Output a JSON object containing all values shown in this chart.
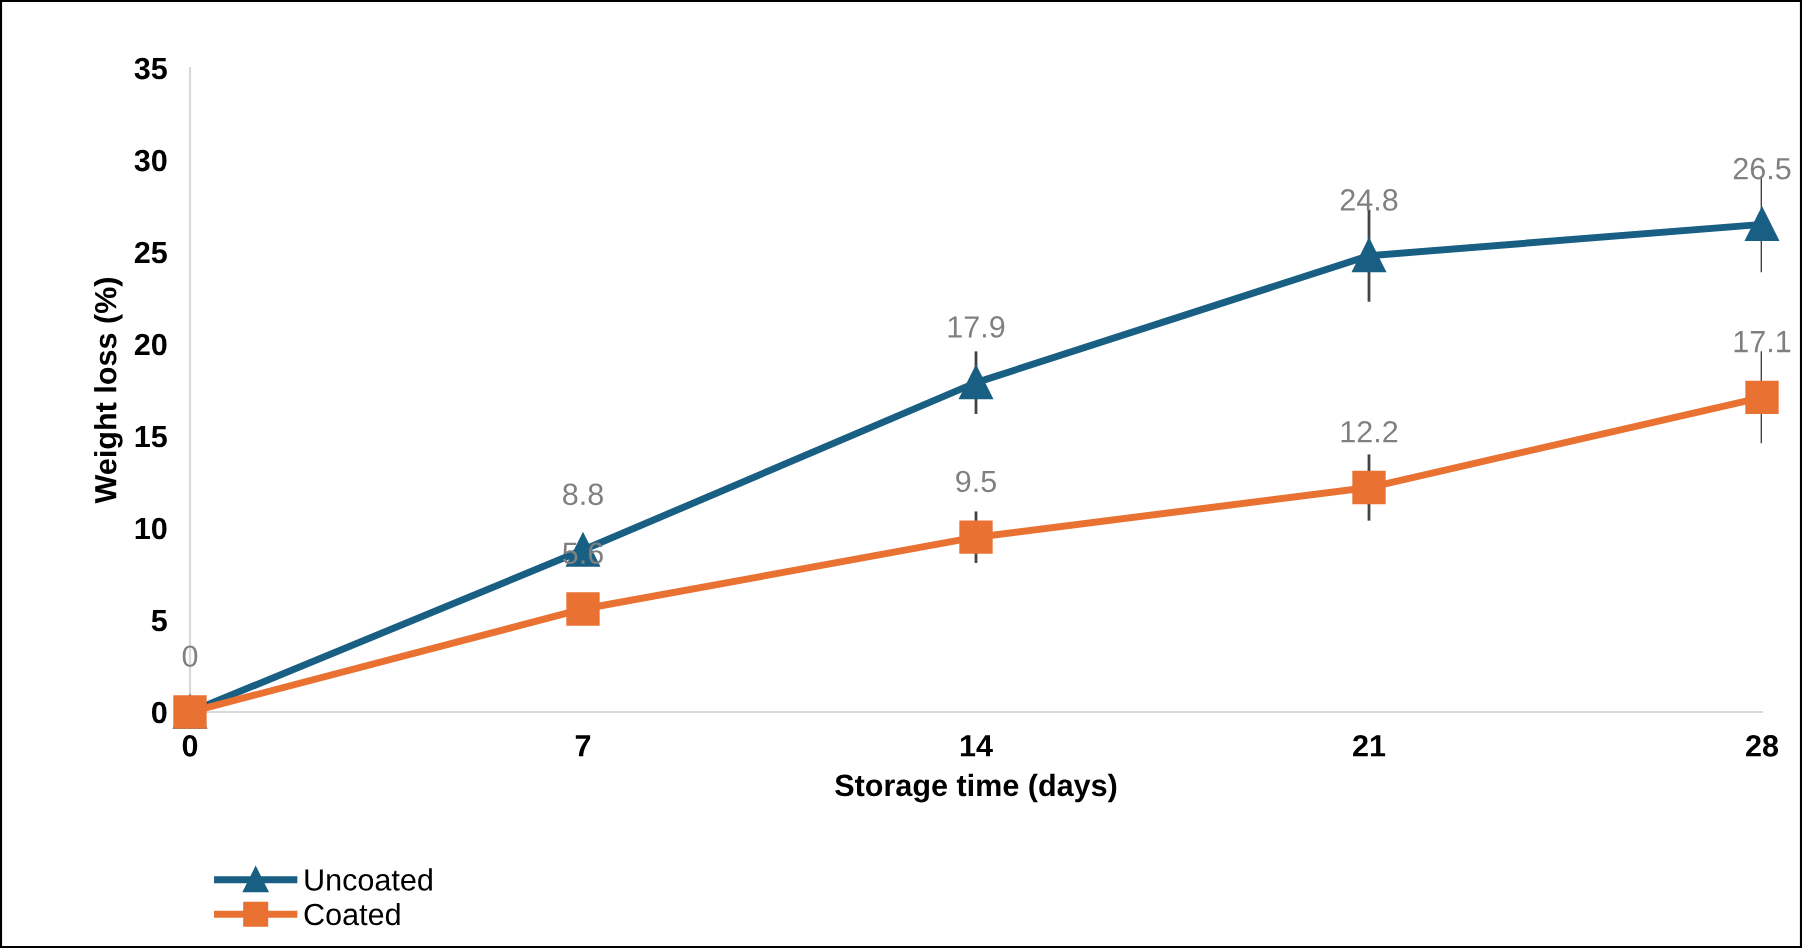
{
  "chart_data": {
    "type": "line",
    "xlabel": "Storage time (days)",
    "ylabel": "Weight loss (%)",
    "x": [
      0,
      7,
      14,
      21,
      28
    ],
    "xlim": [
      0,
      28
    ],
    "xticks": [
      0,
      7,
      14,
      21,
      28
    ],
    "ylim": [
      0,
      35
    ],
    "yticks": [
      0,
      5,
      10,
      15,
      20,
      25,
      30,
      35
    ],
    "series": [
      {
        "name": "Uncoated",
        "color": "#185f83",
        "marker": "triangle",
        "values": [
          0,
          8.8,
          17.9,
          24.8,
          26.5
        ],
        "value_labels": [
          "0",
          "8.8",
          "17.9",
          "24.8",
          "26.5"
        ],
        "errors": [
          null,
          null,
          1.7,
          2.5,
          2.6
        ]
      },
      {
        "name": "Coated",
        "color": "#e97132",
        "marker": "square",
        "values": [
          0,
          5.6,
          9.5,
          12.2,
          17.1
        ],
        "value_labels": [
          null,
          "5.6",
          "9.5",
          "12.2",
          "17.1"
        ],
        "errors": [
          null,
          null,
          1.4,
          1.8,
          2.5
        ]
      }
    ],
    "grid": false,
    "legend": "bottom left",
    "line_style": "solid"
  }
}
